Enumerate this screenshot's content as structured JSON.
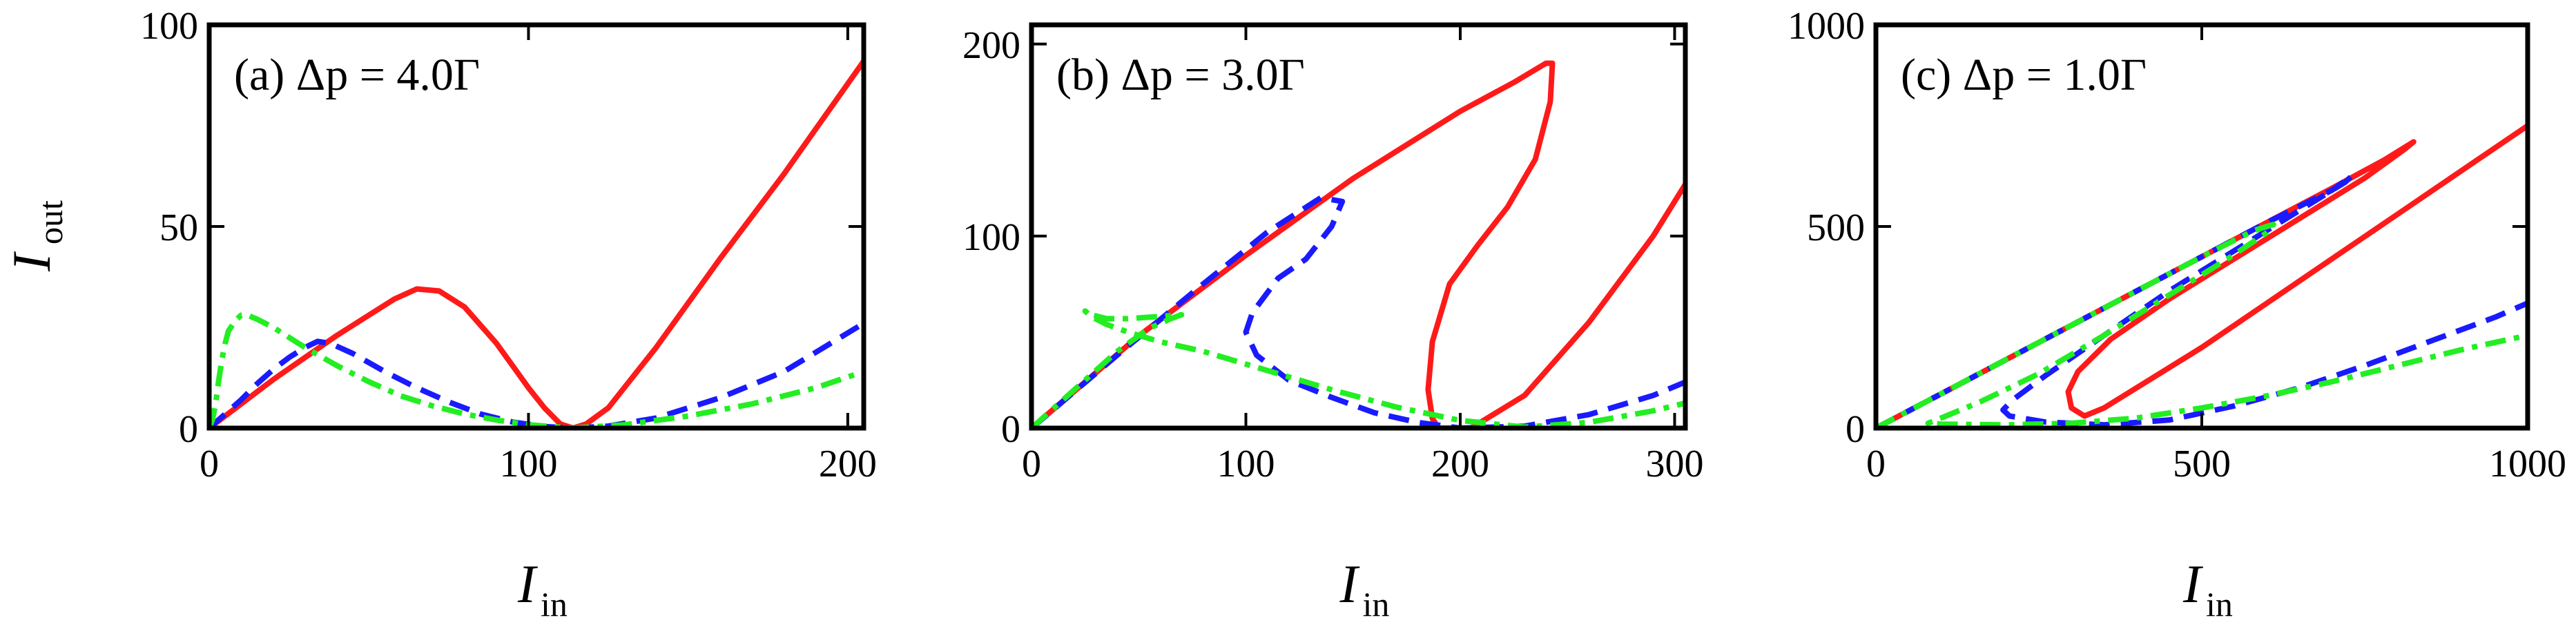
{
  "figure": {
    "ylabel": {
      "main": "I",
      "sub": "out"
    },
    "xlabel": {
      "main": "I",
      "sub": "in"
    }
  },
  "colors": {
    "red": "#ff1a1a",
    "blue": "#1a1aff",
    "green": "#22ee22"
  },
  "chart_data": [
    {
      "type": "line",
      "panel_label": "(a)   Δp = 4.0Γ",
      "xlim": [
        0,
        205
      ],
      "ylim": [
        0,
        100
      ],
      "xticks": [
        "0",
        "100",
        "200"
      ],
      "xtick_values": [
        0,
        100,
        200
      ],
      "yticks": [
        "0",
        "50",
        "100"
      ],
      "ytick_values": [
        0,
        50,
        100
      ],
      "series": [
        {
          "color": "red",
          "style": "solid",
          "points": [
            [
              0,
              0
            ],
            [
              10,
              6
            ],
            [
              20,
              12
            ],
            [
              30,
              17.5
            ],
            [
              40,
              23
            ],
            [
              50,
              28
            ],
            [
              58,
              32
            ],
            [
              65,
              34.5
            ],
            [
              72,
              34
            ],
            [
              80,
              30
            ],
            [
              90,
              21
            ],
            [
              100,
              10
            ],
            [
              105,
              5
            ],
            [
              110,
              1
            ],
            [
              114,
              0
            ],
            [
              118,
              1
            ],
            [
              125,
              5
            ],
            [
              140,
              20
            ],
            [
              160,
              42
            ],
            [
              180,
              63
            ],
            [
              205,
              91
            ]
          ]
        },
        {
          "color": "blue",
          "style": "dashed",
          "points": [
            [
              0,
              0
            ],
            [
              5,
              3.5
            ],
            [
              10,
              7
            ],
            [
              15,
              11
            ],
            [
              20,
              14.5
            ],
            [
              25,
              17.5
            ],
            [
              30,
              20
            ],
            [
              34,
              21.5
            ],
            [
              38,
              21
            ],
            [
              45,
              18.5
            ],
            [
              55,
              14
            ],
            [
              65,
              10
            ],
            [
              75,
              6.5
            ],
            [
              85,
              3.5
            ],
            [
              95,
              1.5
            ],
            [
              105,
              0.4
            ],
            [
              114,
              0
            ],
            [
              125,
              0.5
            ],
            [
              140,
              2.5
            ],
            [
              160,
              7.5
            ],
            [
              180,
              14
            ],
            [
              205,
              26
            ]
          ]
        },
        {
          "color": "green",
          "style": "dashdot",
          "points": [
            [
              0,
              0
            ],
            [
              1,
              2
            ],
            [
              2,
              6
            ],
            [
              3,
              12
            ],
            [
              4,
              17
            ],
            [
              5,
              21
            ],
            [
              6,
              24
            ],
            [
              8,
              26.5
            ],
            [
              10,
              28
            ],
            [
              12,
              28
            ],
            [
              15,
              27
            ],
            [
              20,
              25
            ],
            [
              30,
              20
            ],
            [
              40,
              15.5
            ],
            [
              50,
              11.5
            ],
            [
              60,
              8
            ],
            [
              70,
              5.5
            ],
            [
              80,
              3.5
            ],
            [
              90,
              2
            ],
            [
              100,
              0.8
            ],
            [
              114,
              0
            ],
            [
              130,
              0.8
            ],
            [
              150,
              3
            ],
            [
              170,
              6
            ],
            [
              190,
              10
            ],
            [
              205,
              14
            ]
          ]
        }
      ]
    },
    {
      "type": "line",
      "panel_label": "(b)   Δp = 3.0Γ",
      "xlim": [
        0,
        305
      ],
      "ylim": [
        0,
        210
      ],
      "xticks": [
        "0",
        "100",
        "200",
        "300"
      ],
      "xtick_values": [
        0,
        100,
        200,
        300
      ],
      "yticks": [
        "0",
        "100",
        "200"
      ],
      "ytick_values": [
        0,
        100,
        200
      ],
      "series": [
        {
          "color": "red",
          "style": "solid",
          "points": [
            [
              0,
              0
            ],
            [
              50,
              48
            ],
            [
              100,
              90
            ],
            [
              150,
              130
            ],
            [
              200,
              165
            ],
            [
              225,
              180
            ],
            [
              240,
              190
            ],
            [
              243,
              190
            ],
            [
              242,
              170
            ],
            [
              235,
              140
            ],
            [
              222,
              115
            ],
            [
              208,
              95
            ],
            [
              195,
              75
            ],
            [
              187,
              45
            ],
            [
              185,
              20
            ],
            [
              187,
              5
            ],
            [
              190,
              0
            ],
            [
              205,
              0
            ],
            [
              230,
              17
            ],
            [
              260,
              55
            ],
            [
              290,
              100
            ],
            [
              305,
              127
            ]
          ]
        },
        {
          "color": "blue",
          "style": "dashed",
          "points": [
            [
              0,
              0
            ],
            [
              40,
              38
            ],
            [
              80,
              75
            ],
            [
              110,
              102
            ],
            [
              135,
              120
            ],
            [
              145,
              118
            ],
            [
              140,
              105
            ],
            [
              128,
              88
            ],
            [
              115,
              78
            ],
            [
              103,
              60
            ],
            [
              100,
              50
            ],
            [
              105,
              38
            ],
            [
              120,
              25
            ],
            [
              140,
              16
            ],
            [
              160,
              8
            ],
            [
              180,
              3
            ],
            [
              200,
              0
            ],
            [
              230,
              1
            ],
            [
              260,
              7
            ],
            [
              290,
              17
            ],
            [
              305,
              24
            ]
          ]
        },
        {
          "color": "green",
          "style": "dashdot",
          "points": [
            [
              0,
              0
            ],
            [
              20,
              20
            ],
            [
              40,
              40
            ],
            [
              55,
              52
            ],
            [
              65,
              57
            ],
            [
              70,
              59
            ],
            [
              58,
              58
            ],
            [
              45,
              57
            ],
            [
              35,
              57
            ],
            [
              28,
              59
            ],
            [
              25,
              61
            ],
            [
              28,
              58
            ],
            [
              35,
              54
            ],
            [
              45,
              50
            ],
            [
              60,
              45
            ],
            [
              80,
              40
            ],
            [
              110,
              30
            ],
            [
              140,
              20
            ],
            [
              170,
              11
            ],
            [
              200,
              4
            ],
            [
              230,
              0.5
            ],
            [
              260,
              3
            ],
            [
              290,
              9
            ],
            [
              305,
              13
            ]
          ]
        }
      ]
    },
    {
      "type": "line",
      "panel_label": "(c)   Δp = 1.0Γ",
      "xlim": [
        0,
        1000
      ],
      "ylim": [
        0,
        1000
      ],
      "xticks": [
        "0",
        "500",
        "1000"
      ],
      "xtick_values": [
        0,
        500,
        1000
      ],
      "yticks": [
        "0",
        "500",
        "1000"
      ],
      "ytick_values": [
        0,
        500,
        1000
      ],
      "series": [
        {
          "color": "red",
          "style": "solid",
          "points": [
            [
              0,
              0
            ],
            [
              100,
              85
            ],
            [
              200,
              170
            ],
            [
              300,
              255
            ],
            [
              400,
              340
            ],
            [
              500,
              425
            ],
            [
              600,
              510
            ],
            [
              700,
              595
            ],
            [
              780,
              665
            ],
            [
              820,
              705
            ],
            [
              825,
              710
            ],
            [
              810,
              690
            ],
            [
              750,
              620
            ],
            [
              650,
              520
            ],
            [
              550,
              420
            ],
            [
              450,
              320
            ],
            [
              360,
              220
            ],
            [
              310,
              140
            ],
            [
              295,
              90
            ],
            [
              300,
              50
            ],
            [
              320,
              30
            ],
            [
              350,
              50
            ],
            [
              400,
              100
            ],
            [
              500,
              200
            ],
            [
              600,
              310
            ],
            [
              700,
              420
            ],
            [
              800,
              530
            ],
            [
              900,
              640
            ],
            [
              1000,
              750
            ]
          ]
        },
        {
          "color": "blue",
          "style": "dashed",
          "points": [
            [
              0,
              0
            ],
            [
              100,
              85
            ],
            [
              200,
              170
            ],
            [
              300,
              255
            ],
            [
              400,
              340
            ],
            [
              500,
              425
            ],
            [
              600,
              510
            ],
            [
              700,
              590
            ],
            [
              730,
              625
            ],
            [
              720,
              610
            ],
            [
              650,
              540
            ],
            [
              550,
              440
            ],
            [
              450,
              340
            ],
            [
              350,
              230
            ],
            [
              260,
              130
            ],
            [
              210,
              70
            ],
            [
              195,
              45
            ],
            [
              205,
              30
            ],
            [
              260,
              15
            ],
            [
              350,
              8
            ],
            [
              450,
              20
            ],
            [
              550,
              55
            ],
            [
              650,
              100
            ],
            [
              750,
              155
            ],
            [
              850,
              215
            ],
            [
              950,
              275
            ],
            [
              1000,
              310
            ]
          ]
        },
        {
          "color": "green",
          "style": "dashdot",
          "points": [
            [
              0,
              0
            ],
            [
              100,
              85
            ],
            [
              200,
              170
            ],
            [
              300,
              255
            ],
            [
              400,
              340
            ],
            [
              500,
              425
            ],
            [
              580,
              490
            ],
            [
              610,
              505
            ],
            [
              600,
              485
            ],
            [
              540,
              420
            ],
            [
              450,
              330
            ],
            [
              350,
              230
            ],
            [
              250,
              135
            ],
            [
              160,
              65
            ],
            [
              100,
              25
            ],
            [
              80,
              12
            ],
            [
              100,
              10
            ],
            [
              200,
              8
            ],
            [
              300,
              12
            ],
            [
              400,
              25
            ],
            [
              500,
              50
            ],
            [
              600,
              80
            ],
            [
              700,
              115
            ],
            [
              800,
              155
            ],
            [
              900,
              195
            ],
            [
              1000,
              230
            ]
          ]
        }
      ]
    }
  ]
}
